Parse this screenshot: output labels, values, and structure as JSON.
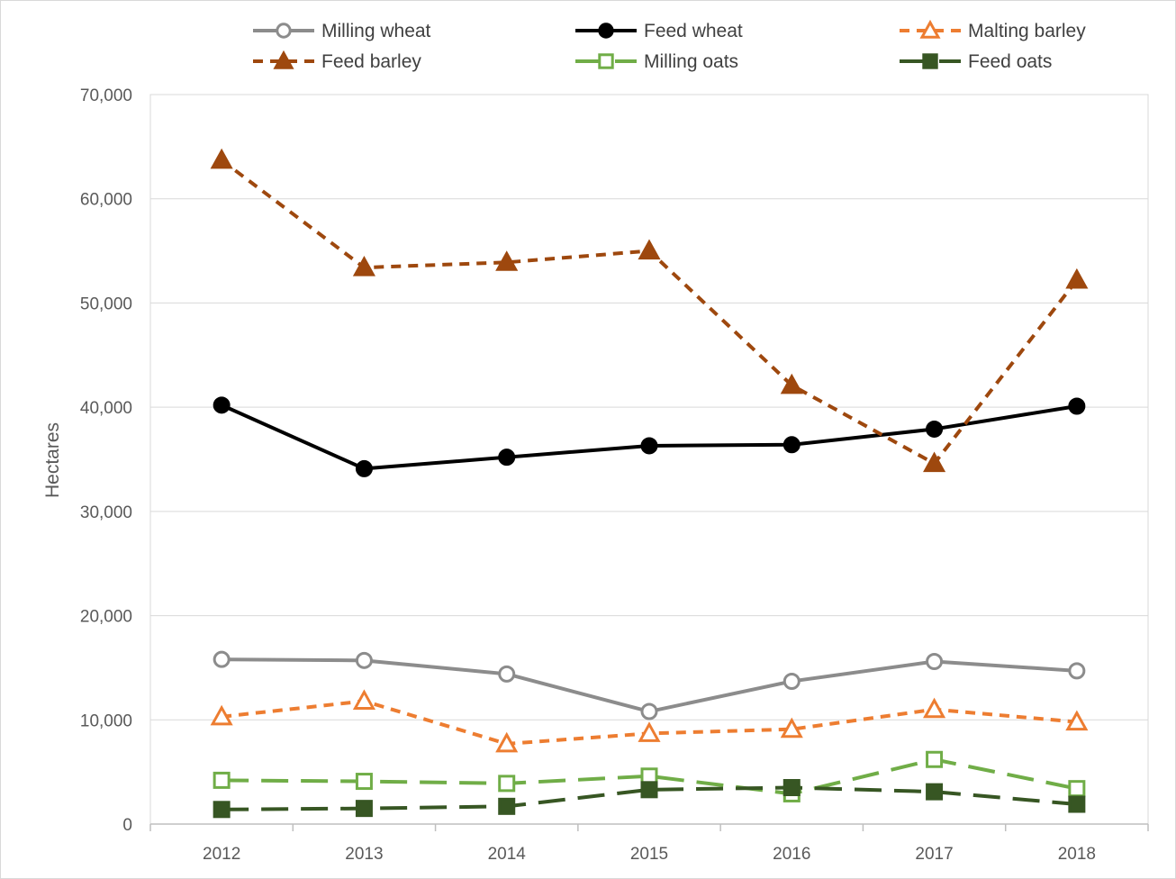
{
  "chart_data": {
    "type": "line",
    "title": "",
    "xlabel": "",
    "ylabel": "Hectares",
    "categories": [
      "2012",
      "2013",
      "2014",
      "2015",
      "2016",
      "2017",
      "2018"
    ],
    "ylim": [
      0,
      70000
    ],
    "y_ticks": [
      0,
      10000,
      20000,
      30000,
      40000,
      50000,
      60000,
      70000
    ],
    "y_tick_labels": [
      "0",
      "10,000",
      "20,000",
      "30,000",
      "40,000",
      "50,000",
      "60,000",
      "70,000"
    ],
    "grid": true,
    "legend_position": "top",
    "series": [
      {
        "name": "Milling wheat",
        "values": [
          15800,
          15700,
          14400,
          10800,
          13700,
          15600,
          14700
        ],
        "color": "#8c8c8c",
        "dash": "solid",
        "marker": "circle-open"
      },
      {
        "name": "Feed wheat",
        "values": [
          40200,
          34100,
          35200,
          36300,
          36400,
          37900,
          40100
        ],
        "color": "#000000",
        "dash": "solid",
        "marker": "circle-filled"
      },
      {
        "name": "Malting barley",
        "values": [
          10300,
          11800,
          7700,
          8700,
          9100,
          11000,
          9800
        ],
        "color": "#ed7d31",
        "dash": "short-dash",
        "marker": "triangle-open"
      },
      {
        "name": "Feed barley",
        "values": [
          63700,
          53400,
          53900,
          55000,
          42100,
          34600,
          52200
        ],
        "color": "#9e480e",
        "dash": "short-dash",
        "marker": "triangle-filled"
      },
      {
        "name": "Milling oats",
        "values": [
          4200,
          4100,
          3900,
          4600,
          2900,
          6200,
          3400
        ],
        "color": "#70ad47",
        "dash": "long-dash",
        "marker": "square-open"
      },
      {
        "name": "Feed oats",
        "values": [
          1400,
          1500,
          1700,
          3300,
          3500,
          3100,
          1900
        ],
        "color": "#375623",
        "dash": "long-dash",
        "marker": "square-filled"
      }
    ]
  }
}
